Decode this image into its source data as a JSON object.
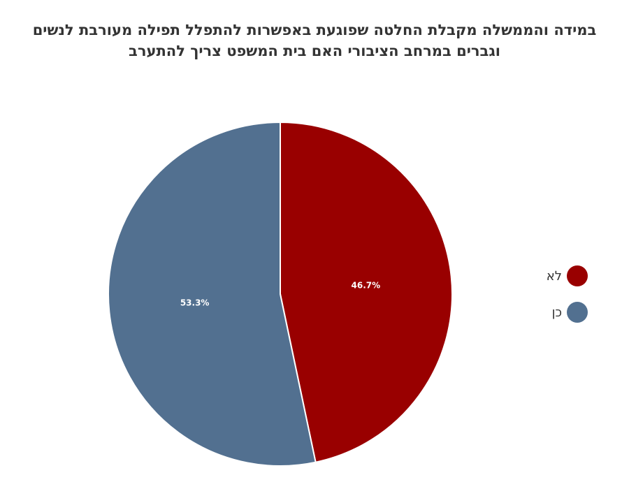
{
  "chart_data": {
    "type": "pie",
    "title": [
      "במידה והממשלה מקבלת החלטה שפוגעת באפשרות להתפלל תפילה מעורבת לנשים",
      "וגברים במרחב הציבורי האם בית המשפט צריך להתערב"
    ],
    "slices": [
      {
        "label": "לא",
        "value": 46.7,
        "display": "46.7%",
        "color": "#990000"
      },
      {
        "label": "כן",
        "value": 53.3,
        "display": "53.3%",
        "color": "#527090"
      }
    ],
    "legend_position": "right"
  }
}
